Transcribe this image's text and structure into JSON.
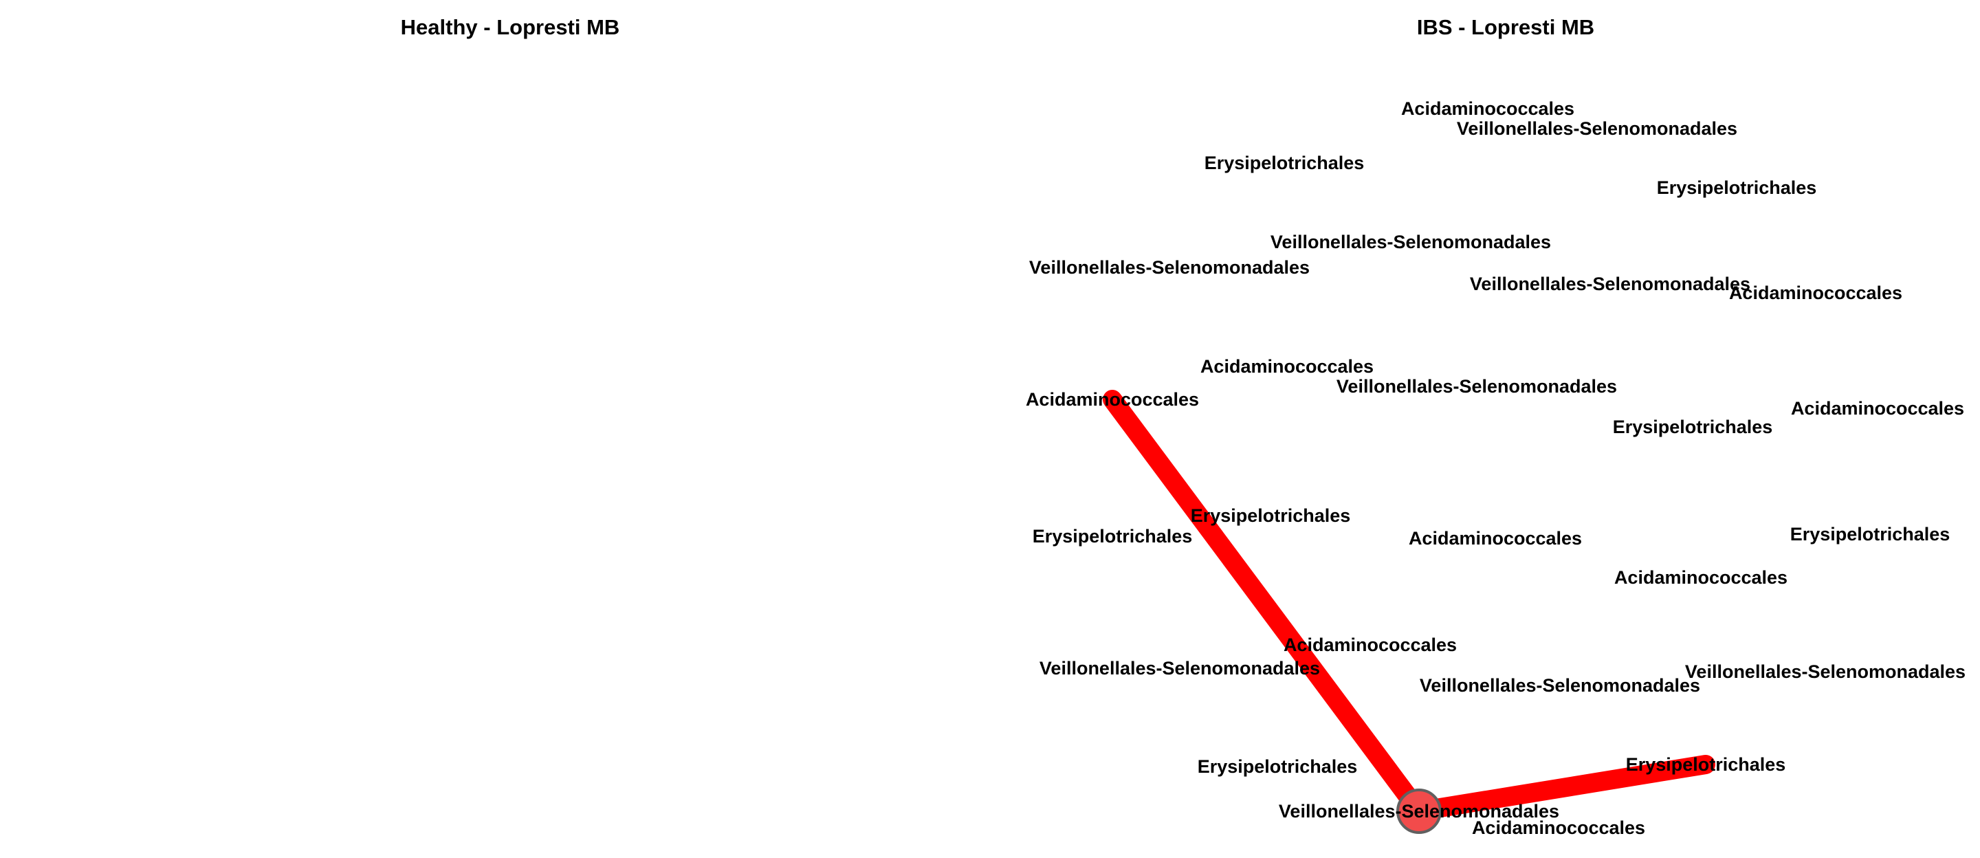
{
  "panels": [
    {
      "id": "healthy",
      "title": "Healthy - Lopresti MB",
      "labels": [],
      "edges": [],
      "hub": null
    },
    {
      "id": "ibs",
      "title": "IBS - Lopresti MB",
      "labels": [
        "Acidaminococcales",
        "Veillonellales-Selenomonadales",
        "Erysipelotrichales",
        "Erysipelotrichales",
        "Veillonellales-Selenomonadales",
        "Veillonellales-Selenomonadales",
        "Veillonellales-Selenomonadales",
        "Acidaminococcales",
        "Acidaminococcales",
        "Veillonellales-Selenomonadales",
        "Acidaminococcales",
        "Erysipelotrichales",
        "Acidaminococcales",
        "Erysipelotrichales",
        "Erysipelotrichales",
        "Acidaminococcales",
        "Erysipelotrichales",
        "Acidaminococcales",
        "Acidaminococcales",
        "Veillonellales-Selenomonadales",
        "Veillonellales-Selenomonadales",
        "Veillonellales-Selenomonadales",
        "Erysipelotrichales",
        "Erysipelotrichales",
        "Veillonellales-Selenomonadales",
        "Acidaminococcales"
      ],
      "edges": [
        {
          "from": 24,
          "to": 10
        },
        {
          "from": 24,
          "to": 23
        }
      ],
      "hub": 24
    }
  ],
  "colors": {
    "edge": "#ff0000",
    "node_fill": "#f24b4b",
    "node_stroke": "#606060",
    "text": "#000000"
  }
}
